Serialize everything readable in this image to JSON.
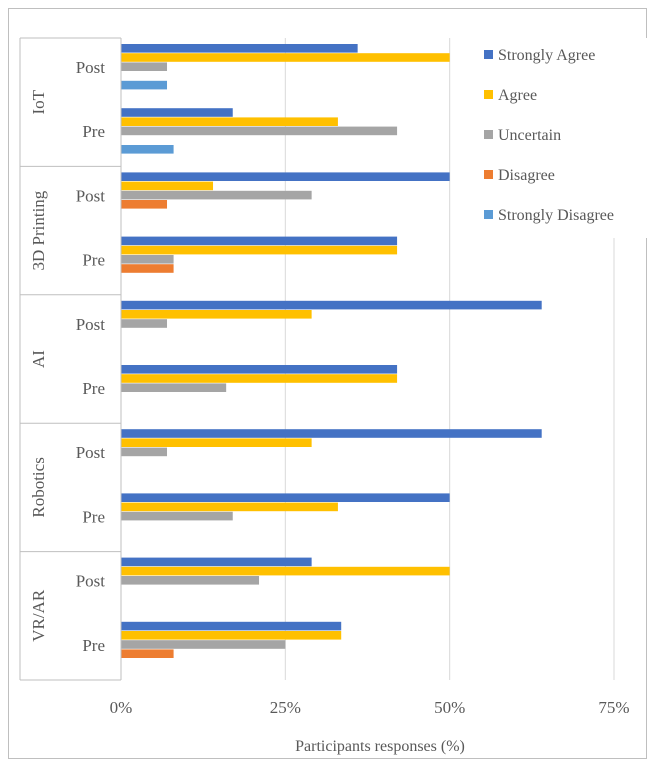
{
  "colors": {
    "Strongly Agree": "#4472C4",
    "Agree": "#FFC000",
    "Uncertain": "#A5A5A5",
    "Disagree": "#ED7D31",
    "Strongly Disagree": "#5B9BD5",
    "gridline": "#d9d9d9",
    "border": "#bfbfbf"
  },
  "chart_data": {
    "type": "bar",
    "orientation": "horizontal",
    "xlabel": "Participants responses (%)",
    "xlim": [
      0,
      75
    ],
    "xticks": [
      {
        "value": 0,
        "label": "0%"
      },
      {
        "value": 25,
        "label": "25%"
      },
      {
        "value": 50,
        "label": "50%"
      },
      {
        "value": 75,
        "label": "75%"
      }
    ],
    "grid": true,
    "legend_position": "top-right",
    "legend": [
      "Strongly Agree",
      "Agree",
      "Uncertain",
      "Disagree",
      "Strongly Disagree"
    ],
    "groups": [
      {
        "name": "IoT",
        "subgroups": [
          {
            "label": "Post",
            "values": {
              "Strongly Agree": 36,
              "Agree": 50,
              "Uncertain": 7,
              "Disagree": 0,
              "Strongly Disagree": 7
            }
          },
          {
            "label": "Pre",
            "values": {
              "Strongly Agree": 17,
              "Agree": 33,
              "Uncertain": 42,
              "Disagree": 0,
              "Strongly Disagree": 8
            }
          }
        ]
      },
      {
        "name": "3D Printing",
        "subgroups": [
          {
            "label": "Post",
            "values": {
              "Strongly Agree": 50,
              "Agree": 14,
              "Uncertain": 29,
              "Disagree": 7,
              "Strongly Disagree": 0
            }
          },
          {
            "label": "Pre",
            "values": {
              "Strongly Agree": 42,
              "Agree": 42,
              "Uncertain": 8,
              "Disagree": 8,
              "Strongly Disagree": 0
            }
          }
        ]
      },
      {
        "name": "AI",
        "subgroups": [
          {
            "label": "Post",
            "values": {
              "Strongly Agree": 64,
              "Agree": 29,
              "Uncertain": 7,
              "Disagree": 0,
              "Strongly Disagree": 0
            }
          },
          {
            "label": "Pre",
            "values": {
              "Strongly Agree": 42,
              "Agree": 42,
              "Uncertain": 16,
              "Disagree": 0,
              "Strongly Disagree": 0
            }
          }
        ]
      },
      {
        "name": "Robotics",
        "subgroups": [
          {
            "label": "Post",
            "values": {
              "Strongly Agree": 64,
              "Agree": 29,
              "Uncertain": 7,
              "Disagree": 0,
              "Strongly Disagree": 0
            }
          },
          {
            "label": "Pre",
            "values": {
              "Strongly Agree": 50,
              "Agree": 33,
              "Uncertain": 17,
              "Disagree": 0,
              "Strongly Disagree": 0
            }
          }
        ]
      },
      {
        "name": "VR/AR",
        "subgroups": [
          {
            "label": "Post",
            "values": {
              "Strongly Agree": 29,
              "Agree": 50,
              "Uncertain": 21,
              "Disagree": 0,
              "Strongly Disagree": 0
            }
          },
          {
            "label": "Pre",
            "values": {
              "Strongly Agree": 33.5,
              "Agree": 33.5,
              "Uncertain": 25,
              "Disagree": 8,
              "Strongly Disagree": 0
            }
          }
        ]
      }
    ]
  }
}
